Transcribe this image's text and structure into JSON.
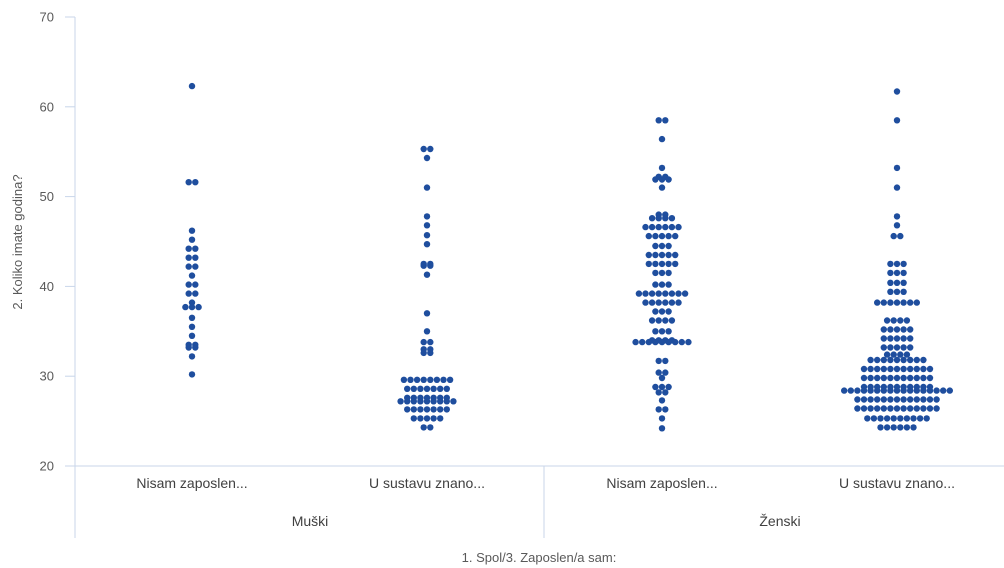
{
  "chart_data": {
    "type": "scatter",
    "subtype": "beeswarm",
    "ylabel": "2. Koliko imate godina?",
    "xlabel": "1. Spol/3. Zaposlen/a sam:",
    "ylim": [
      20,
      70
    ],
    "yticks": [
      20,
      30,
      40,
      50,
      60,
      70
    ],
    "grid": false,
    "marker_color": "#1f4e9e",
    "axis_color": "#c8d6ea",
    "groups": [
      {
        "label": "Muški",
        "categories": [
          "Nisam zaposlen...",
          "U sustavu znano..."
        ]
      },
      {
        "label": "Ženski",
        "categories": [
          "Nisam zaposlen...",
          "U sustavu znano..."
        ]
      }
    ],
    "series": [
      {
        "group": "Muški",
        "category": "Nisam zaposlen...",
        "rows": [
          [
            62.3,
            1
          ],
          [
            51.6,
            2
          ],
          [
            46.2,
            1
          ],
          [
            45.2,
            1
          ],
          [
            44.2,
            2
          ],
          [
            43.2,
            2
          ],
          [
            42.2,
            2
          ],
          [
            41.2,
            1
          ],
          [
            40.2,
            2
          ],
          [
            39.2,
            2
          ],
          [
            38.2,
            1
          ],
          [
            37.7,
            3
          ],
          [
            36.5,
            1
          ],
          [
            35.5,
            1
          ],
          [
            34.5,
            1
          ],
          [
            33.5,
            2
          ],
          [
            33.2,
            2
          ],
          [
            32.2,
            1
          ],
          [
            30.2,
            1
          ]
        ]
      },
      {
        "group": "Muški",
        "category": "U sustavu znano...",
        "rows": [
          [
            55.3,
            2
          ],
          [
            54.3,
            1
          ],
          [
            51.0,
            1
          ],
          [
            47.8,
            1
          ],
          [
            46.8,
            1
          ],
          [
            45.7,
            1
          ],
          [
            44.7,
            1
          ],
          [
            42.5,
            2
          ],
          [
            42.3,
            2
          ],
          [
            41.3,
            1
          ],
          [
            37.0,
            1
          ],
          [
            35.0,
            1
          ],
          [
            33.8,
            2
          ],
          [
            33.0,
            2
          ],
          [
            32.6,
            2
          ],
          [
            29.6,
            8
          ],
          [
            28.6,
            7
          ],
          [
            27.6,
            7
          ],
          [
            27.2,
            9
          ],
          [
            26.3,
            7
          ],
          [
            25.3,
            5
          ],
          [
            24.3,
            2
          ]
        ]
      },
      {
        "group": "Ženski",
        "category": "Nisam zaposlen...",
        "rows": [
          [
            58.5,
            2
          ],
          [
            56.4,
            1
          ],
          [
            53.2,
            1
          ],
          [
            52.2,
            2
          ],
          [
            51.9,
            3
          ],
          [
            51.0,
            1
          ],
          [
            48.0,
            2
          ],
          [
            47.6,
            4
          ],
          [
            46.6,
            6
          ],
          [
            45.6,
            5
          ],
          [
            44.5,
            3
          ],
          [
            43.5,
            5
          ],
          [
            42.5,
            5
          ],
          [
            41.5,
            3
          ],
          [
            40.2,
            3
          ],
          [
            39.2,
            8
          ],
          [
            38.2,
            6
          ],
          [
            37.2,
            3
          ],
          [
            36.2,
            4
          ],
          [
            35.0,
            3
          ],
          [
            34.0,
            4
          ],
          [
            33.8,
            9
          ],
          [
            31.7,
            2
          ],
          [
            30.4,
            2
          ],
          [
            29.8,
            1
          ],
          [
            28.8,
            3
          ],
          [
            28.2,
            2
          ],
          [
            27.3,
            1
          ],
          [
            26.3,
            2
          ],
          [
            25.3,
            1
          ],
          [
            24.2,
            1
          ]
        ]
      },
      {
        "group": "Ženski",
        "category": "U sustavu znano...",
        "rows": [
          [
            61.7,
            1
          ],
          [
            58.5,
            1
          ],
          [
            53.2,
            1
          ],
          [
            51.0,
            1
          ],
          [
            47.8,
            1
          ],
          [
            46.8,
            1
          ],
          [
            45.6,
            2
          ],
          [
            42.5,
            3
          ],
          [
            41.5,
            3
          ],
          [
            40.4,
            3
          ],
          [
            39.4,
            3
          ],
          [
            38.2,
            7
          ],
          [
            36.2,
            4
          ],
          [
            35.2,
            5
          ],
          [
            34.2,
            5
          ],
          [
            33.2,
            5
          ],
          [
            32.4,
            4
          ],
          [
            31.8,
            9
          ],
          [
            30.8,
            11
          ],
          [
            29.8,
            11
          ],
          [
            28.8,
            11
          ],
          [
            28.4,
            17
          ],
          [
            27.4,
            13
          ],
          [
            26.4,
            13
          ],
          [
            25.3,
            10
          ],
          [
            24.3,
            6
          ]
        ]
      }
    ]
  }
}
